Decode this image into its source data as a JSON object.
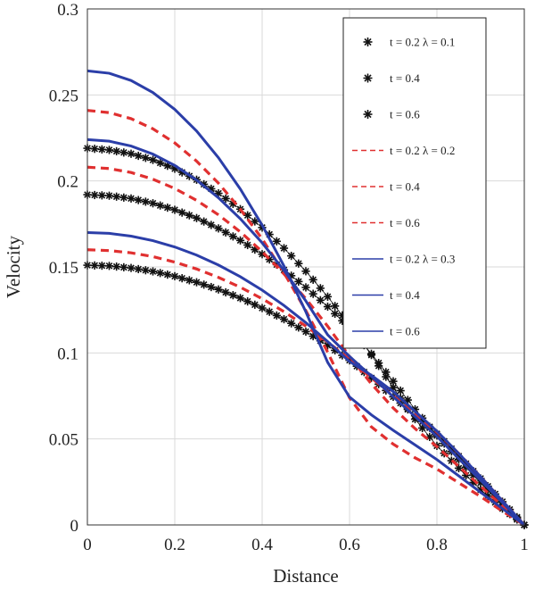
{
  "chart_data": {
    "type": "line",
    "title": "",
    "xlabel": "Distance",
    "ylabel": "Velocity",
    "xlim": [
      0,
      1
    ],
    "ylim": [
      0,
      0.3
    ],
    "xticks": [
      "0",
      "0.2",
      "0.4",
      "0.6",
      "0.8",
      "1"
    ],
    "yticks": [
      "0",
      "0.05",
      "0.1",
      "0.15",
      "0.2",
      "0.25",
      "0.3"
    ],
    "grid": true,
    "legend_position": "top-right",
    "x": [
      0,
      0.05,
      0.1,
      0.15,
      0.2,
      0.25,
      0.3,
      0.35,
      0.4,
      0.45,
      0.5,
      0.55,
      0.6,
      0.65,
      0.7,
      0.75,
      0.8,
      0.85,
      0.9,
      0.95,
      1
    ],
    "series": [
      {
        "name": "t = 0.2 λ = 0.1",
        "style": "star",
        "color": "#111111",
        "values": [
          0.219,
          0.218,
          0.2158,
          0.2122,
          0.2071,
          0.2007,
          0.1928,
          0.1836,
          0.1729,
          0.1609,
          0.1475,
          0.1327,
          0.1164,
          0.0988,
          0.0798,
          0.0615,
          0.046,
          0.033,
          0.0205,
          0.0095,
          0.0
        ]
      },
      {
        "name": "t = 0.4",
        "style": "star",
        "color": "#111111",
        "values": [
          0.192,
          0.1914,
          0.1898,
          0.187,
          0.1832,
          0.1784,
          0.1724,
          0.1654,
          0.1574,
          0.1483,
          0.1381,
          0.1269,
          0.1146,
          0.0995,
          0.0835,
          0.0672,
          0.052,
          0.038,
          0.0245,
          0.0115,
          0.0
        ]
      },
      {
        "name": "t = 0.6",
        "style": "star",
        "color": "#111111",
        "values": [
          0.151,
          0.1506,
          0.1494,
          0.1474,
          0.1446,
          0.1411,
          0.1369,
          0.1319,
          0.1261,
          0.1196,
          0.1124,
          0.1044,
          0.0957,
          0.0855,
          0.0745,
          0.0635,
          0.053,
          0.04,
          0.027,
          0.0135,
          0.0
        ]
      },
      {
        "name": "t = 0.2 λ = 0.2",
        "style": "dash",
        "color": "#e03030",
        "values": [
          0.241,
          0.2397,
          0.2362,
          0.2303,
          0.2221,
          0.2115,
          0.1987,
          0.1836,
          0.1663,
          0.1466,
          0.1246,
          0.1004,
          0.0739,
          0.057,
          0.047,
          0.039,
          0.0325,
          0.0245,
          0.0165,
          0.008,
          0.0
        ]
      },
      {
        "name": "t = 0.4",
        "style": "dash",
        "color": "#e03030",
        "values": [
          0.208,
          0.2072,
          0.2049,
          0.201,
          0.1956,
          0.1887,
          0.1803,
          0.1704,
          0.1589,
          0.1459,
          0.1315,
          0.1155,
          0.098,
          0.082,
          0.068,
          0.056,
          0.0455,
          0.034,
          0.0225,
          0.011,
          0.0
        ]
      },
      {
        "name": "t = 0.6",
        "style": "dash",
        "color": "#e03030",
        "values": [
          0.16,
          0.1595,
          0.1582,
          0.156,
          0.1528,
          0.1488,
          0.1439,
          0.1382,
          0.1315,
          0.124,
          0.1156,
          0.1064,
          0.0962,
          0.0855,
          0.075,
          0.0645,
          0.054,
          0.0415,
          0.028,
          0.014,
          0.0
        ]
      },
      {
        "name": "t = 0.2 λ = 0.3",
        "style": "solid",
        "color": "#2b3ea8",
        "values": [
          0.264,
          0.2626,
          0.2584,
          0.2514,
          0.2416,
          0.229,
          0.2135,
          0.1953,
          0.1743,
          0.1505,
          0.1239,
          0.0945,
          0.0744,
          0.064,
          0.055,
          0.0465,
          0.038,
          0.0285,
          0.019,
          0.0095,
          0.0
        ]
      },
      {
        "name": "t = 0.4",
        "style": "solid",
        "color": "#2b3ea8",
        "values": [
          0.224,
          0.2231,
          0.2203,
          0.2156,
          0.209,
          0.2005,
          0.1902,
          0.178,
          0.164,
          0.148,
          0.1302,
          0.1105,
          0.098,
          0.0865,
          0.0745,
          0.063,
          0.0515,
          0.0385,
          0.026,
          0.013,
          0.0
        ]
      },
      {
        "name": "t = 0.6",
        "style": "solid",
        "color": "#2b3ea8",
        "values": [
          0.17,
          0.1695,
          0.1679,
          0.1653,
          0.1616,
          0.1569,
          0.1511,
          0.1443,
          0.1365,
          0.1276,
          0.1176,
          0.1066,
          0.095,
          0.087,
          0.0775,
          0.066,
          0.0545,
          0.0415,
          0.028,
          0.014,
          0.0
        ]
      }
    ]
  }
}
